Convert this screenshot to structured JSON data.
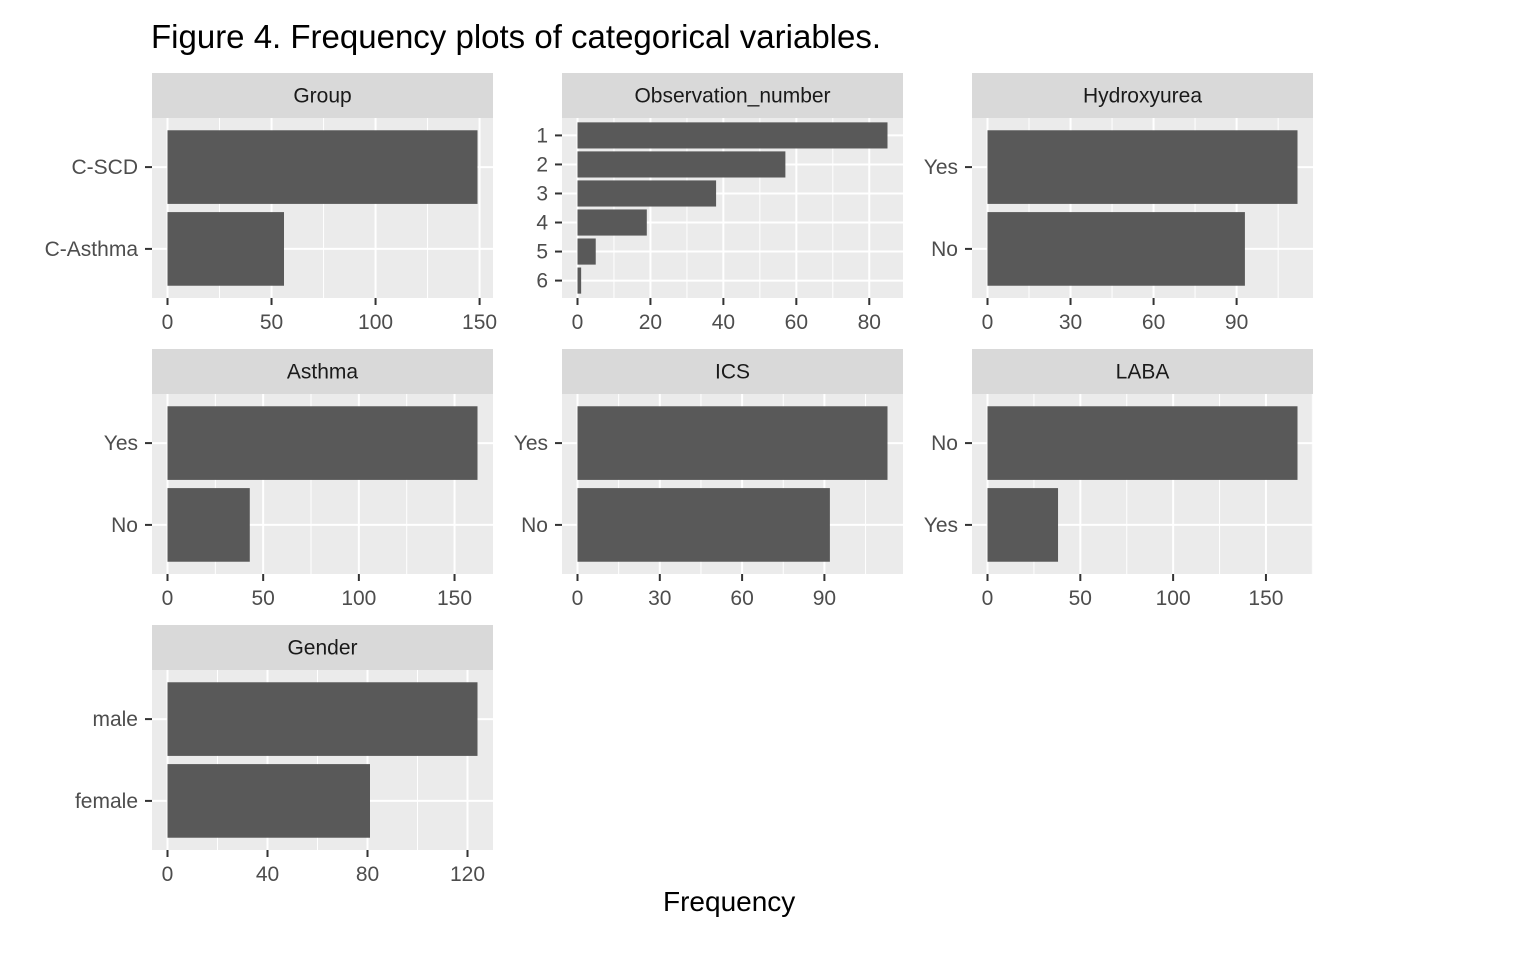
{
  "figure": {
    "title": "Figure 4. Frequency plots of categorical variables.",
    "xlabel": "Frequency"
  },
  "colors": {
    "panel_bg": "#ebebeb",
    "strip_bg": "#d9d9d9",
    "grid": "#ffffff",
    "bar": "#595959",
    "tick": "#333333"
  },
  "chart_data": [
    {
      "type": "bar",
      "orientation": "horizontal",
      "title": "Group",
      "categories": [
        "C-SCD",
        "C-Asthma"
      ],
      "values": [
        149,
        56
      ],
      "xticks": [
        0,
        50,
        100,
        150
      ],
      "xlim": [
        -7.45,
        156.45
      ],
      "ylabel": "",
      "xlabel": ""
    },
    {
      "type": "bar",
      "orientation": "horizontal",
      "title": "Observation_number",
      "categories": [
        "1",
        "2",
        "3",
        "4",
        "5",
        "6"
      ],
      "values": [
        85,
        57,
        38,
        19,
        5,
        1
      ],
      "xticks": [
        0,
        20,
        40,
        60,
        80
      ],
      "xlim": [
        -4.25,
        89.25
      ],
      "ylabel": "",
      "xlabel": ""
    },
    {
      "type": "bar",
      "orientation": "horizontal",
      "title": "Hydroxyurea",
      "categories": [
        "Yes",
        "No"
      ],
      "values": [
        112,
        93
      ],
      "xticks": [
        0,
        30,
        60,
        90
      ],
      "xlim": [
        -5.6,
        117.6
      ],
      "ylabel": "",
      "xlabel": ""
    },
    {
      "type": "bar",
      "orientation": "horizontal",
      "title": "Asthma",
      "categories": [
        "Yes",
        "No"
      ],
      "values": [
        162,
        43
      ],
      "xticks": [
        0,
        50,
        100,
        150
      ],
      "xlim": [
        -8.1,
        170.1
      ],
      "ylabel": "",
      "xlabel": ""
    },
    {
      "type": "bar",
      "orientation": "horizontal",
      "title": "ICS",
      "categories": [
        "Yes",
        "No"
      ],
      "values": [
        113,
        92
      ],
      "xticks": [
        0,
        30,
        60,
        90
      ],
      "xlim": [
        -5.65,
        118.65
      ],
      "ylabel": "",
      "xlabel": ""
    },
    {
      "type": "bar",
      "orientation": "horizontal",
      "title": "LABA",
      "categories": [
        "No",
        "Yes"
      ],
      "values": [
        167,
        38
      ],
      "xticks": [
        0,
        50,
        100,
        150
      ],
      "xlim": [
        -8.35,
        175.35
      ],
      "ylabel": "",
      "xlabel": ""
    },
    {
      "type": "bar",
      "orientation": "horizontal",
      "title": "Gender",
      "categories": [
        "male",
        "female"
      ],
      "values": [
        124,
        81
      ],
      "xticks": [
        0,
        40,
        80,
        120
      ],
      "xlim": [
        -6.2,
        130.2
      ],
      "ylabel": "",
      "xlabel": ""
    }
  ]
}
